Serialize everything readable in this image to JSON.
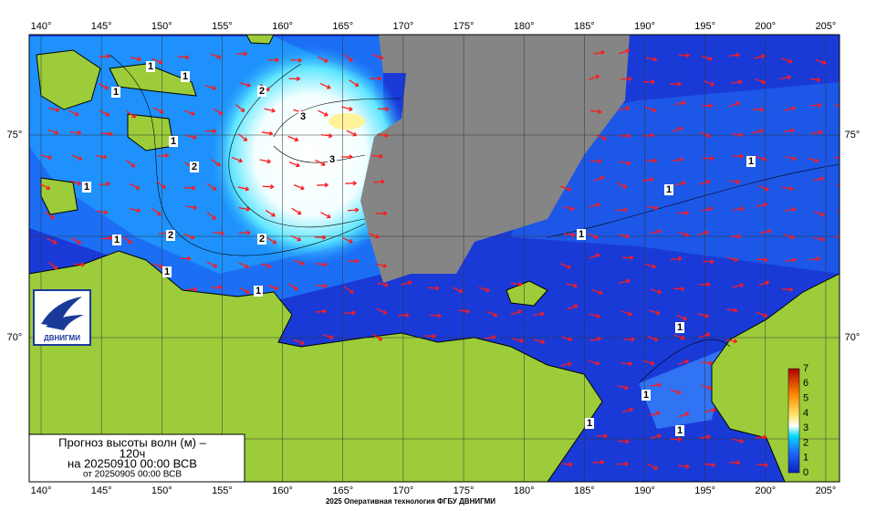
{
  "map": {
    "lon_labels": [
      "140°",
      "145°",
      "150°",
      "155°",
      "160°",
      "165°",
      "170°",
      "175°",
      "180°",
      "185°",
      "190°",
      "195°",
      "200°",
      "205°"
    ],
    "lat_labels": [
      "75°",
      "70°"
    ],
    "contour_labels": [
      "1",
      "2",
      "3"
    ],
    "colorbar_ticks": [
      "0",
      "1",
      "2",
      "3",
      "4",
      "5",
      "6",
      "7"
    ],
    "logo": "ДВНИГМИ",
    "title": {
      "line1": "Прогноз высоты волн (м) –",
      "line2": "120ч",
      "line3": "на 20250910 00:00 ВСВ",
      "line4": "от 20250905 00:00 ВСВ"
    },
    "footer": "2025 Оперативная технология ФГБУ ДВНИГМИ"
  }
}
